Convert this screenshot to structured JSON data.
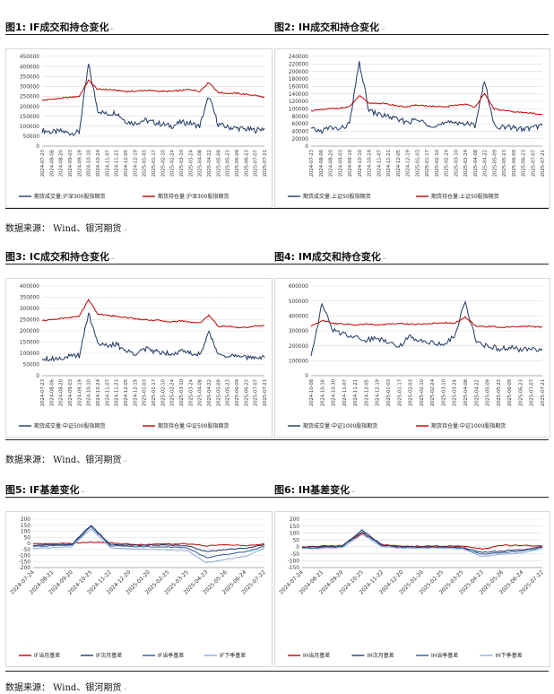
{
  "colors": {
    "navy": "#1f3864",
    "red": "#c00000",
    "lightblue": "#8eaadb",
    "grid": "#d9d9d9",
    "axis": "#999999"
  },
  "source_text": "数据来源：  Wind、银河期货",
  "figures": [
    {
      "title": "图1:  IF成交和持仓变化",
      "chart_data": {
        "type": "line",
        "y_ticks": [
          "0",
          "50000",
          "100000",
          "150000",
          "200000",
          "250000",
          "300000",
          "350000",
          "400000",
          "450000"
        ],
        "ylim": [
          0,
          450000
        ],
        "x_ticks": [
          "2024-07-23",
          "2024-08-06",
          "2024-08-20",
          "2024-09-03",
          "2024-09-19",
          "2024-10-10",
          "2024-10-24",
          "2024-11-07",
          "2024-11-21",
          "2024-12-05",
          "2024-12-19",
          "2025-01-03",
          "2025-01-17",
          "2025-02-10",
          "2025-02-24",
          "2025-03-10",
          "2025-03-24",
          "2025-04-08",
          "2025-04-22",
          "2025-05-09",
          "2025-05-23",
          "2025-06-09",
          "2025-06-23",
          "2025-07-07",
          "2025-07-21"
        ],
        "series": [
          {
            "name": "期货成交量:沪深300股指期货",
            "color": "#1f3864",
            "values": [
              80000,
              70000,
              75000,
              65000,
              70000,
              410000,
              180000,
              160000,
              170000,
              125000,
              115000,
              130000,
              120000,
              110000,
              100000,
              120000,
              115000,
              100000,
              250000,
              110000,
              95000,
              90000,
              85000,
              80000,
              90000
            ]
          },
          {
            "name": "期货持仓量:沪深300股指期货",
            "color": "#c00000",
            "values": [
              230000,
              235000,
              240000,
              245000,
              250000,
              330000,
              285000,
              285000,
              280000,
              275000,
              275000,
              280000,
              278000,
              275000,
              275000,
              280000,
              285000,
              275000,
              320000,
              270000,
              265000,
              265000,
              260000,
              255000,
              245000
            ]
          }
        ]
      }
    },
    {
      "title": "图2:  IH成交和持仓变化",
      "chart_data": {
        "type": "line",
        "y_ticks": [
          "0",
          "20000",
          "40000",
          "60000",
          "80000",
          "100000",
          "120000",
          "140000",
          "160000",
          "180000",
          "200000",
          "220000",
          "240000"
        ],
        "ylim": [
          0,
          240000
        ],
        "x_ticks": [
          "2024-07-23",
          "2024-08-06",
          "2024-08-20",
          "2024-09-03",
          "2024-09-19",
          "2024-10-10",
          "2024-10-24",
          "2024-11-07",
          "2024-11-21",
          "2024-12-05",
          "2024-12-19",
          "2025-01-03",
          "2025-01-17",
          "2025-02-10",
          "2025-02-24",
          "2025-03-10",
          "2025-03-24",
          "2025-04-08",
          "2025-04-22",
          "2025-05-09",
          "2025-05-23",
          "2025-06-09",
          "2025-06-23",
          "2025-07-07",
          "2025-07-21"
        ],
        "series": [
          {
            "name": "期货成交量:上证50股指期货",
            "color": "#1f3864",
            "values": [
              45000,
              40000,
              50000,
              45000,
              60000,
              225000,
              95000,
              85000,
              80000,
              70000,
              65000,
              70000,
              60000,
              55000,
              60000,
              65000,
              60000,
              55000,
              175000,
              55000,
              50000,
              50000,
              45000,
              50000,
              55000
            ]
          },
          {
            "name": "期货持仓量:上证50股指期货",
            "color": "#c00000",
            "values": [
              95000,
              97000,
              100000,
              102000,
              105000,
              135000,
              115000,
              115000,
              112000,
              108000,
              105000,
              110000,
              108000,
              105000,
              105000,
              110000,
              112000,
              105000,
              140000,
              100000,
              95000,
              92000,
              90000,
              88000,
              85000
            ]
          }
        ]
      }
    },
    {
      "title": "图3:  IC成交和持仓变化",
      "chart_data": {
        "type": "line",
        "y_ticks": [
          "0",
          "50000",
          "100000",
          "150000",
          "200000",
          "250000",
          "300000",
          "350000",
          "400000"
        ],
        "ylim": [
          0,
          400000
        ],
        "x_ticks": [
          "2024-07-23",
          "2024-08-06",
          "2024-08-20",
          "2024-09-03",
          "2024-09-19",
          "2024-10-10",
          "2024-10-24",
          "2024-11-07",
          "2024-11-21",
          "2024-12-05",
          "2024-12-19",
          "2025-01-03",
          "2025-01-17",
          "2025-02-10",
          "2025-02-24",
          "2025-03-10",
          "2025-03-24",
          "2025-04-08",
          "2025-04-22",
          "2025-05-09",
          "2025-05-23",
          "2025-06-09",
          "2025-06-23",
          "2025-07-07",
          "2025-07-21"
        ],
        "series": [
          {
            "name": "期货成交量:中证500股指期货",
            "color": "#1f3864",
            "values": [
              80000,
              75000,
              80000,
              85000,
              90000,
              280000,
              150000,
              130000,
              140000,
              110000,
              100000,
              120000,
              110000,
              105000,
              100000,
              110000,
              100000,
              95000,
              190000,
              100000,
              90000,
              85000,
              80000,
              85000,
              80000
            ]
          },
          {
            "name": "期货持仓量:中证500股指期货",
            "color": "#c00000",
            "values": [
              245000,
              250000,
              255000,
              260000,
              265000,
              340000,
              275000,
              270000,
              265000,
              260000,
              255000,
              250000,
              248000,
              245000,
              240000,
              245000,
              240000,
              235000,
              270000,
              220000,
              220000,
              215000,
              215000,
              220000,
              225000
            ]
          }
        ]
      }
    },
    {
      "title": "图4:  IM成交和持仓变化",
      "chart_data": {
        "type": "line",
        "y_ticks": [
          "0",
          "100000",
          "200000",
          "300000",
          "400000",
          "500000",
          "600000"
        ],
        "ylim": [
          0,
          600000
        ],
        "x_ticks": [
          "2024-10-08",
          "2024-10-16",
          "2024-10-30",
          "2024-11-07",
          "2024-11-21",
          "2024-12-05",
          "2024-12-19",
          "2025-01-03",
          "2025-01-17",
          "2025-02-03",
          "2025-02-10",
          "2025-02-24",
          "2025-03-10",
          "2025-03-24",
          "2025-04-08",
          "2025-04-22",
          "2025-05-09",
          "2025-05-23",
          "2025-06-09",
          "2025-06-23",
          "2025-07-07",
          "2025-07-21"
        ],
        "series": [
          {
            "name": "期货成交量:中证1000股指期货",
            "color": "#1f3864",
            "values": [
              140000,
              480000,
              300000,
              280000,
              260000,
              240000,
              250000,
              230000,
              200000,
              260000,
              240000,
              220000,
              210000,
              260000,
              500000,
              220000,
              200000,
              180000,
              190000,
              170000,
              180000,
              180000
            ]
          },
          {
            "name": "期货持仓量:中证1000股指期货",
            "color": "#c00000",
            "values": [
              330000,
              370000,
              350000,
              345000,
              340000,
              345000,
              340000,
              345000,
              350000,
              345000,
              345000,
              350000,
              355000,
              350000,
              390000,
              330000,
              330000,
              325000,
              325000,
              330000,
              330000,
              325000
            ]
          }
        ]
      }
    },
    {
      "title": "图5:  IF基差变化",
      "chart_data": {
        "type": "line",
        "y_ticks": [
          "-200",
          "-150",
          "-100",
          "-50",
          "0",
          "50",
          "100",
          "150",
          "200"
        ],
        "ylim": [
          -200,
          200
        ],
        "x_ticks": [
          "2024-07-24",
          "2024-08-21",
          "2024-09-20",
          "2024-10-25",
          "2024-11-22",
          "2024-12-20",
          "2025-01-20",
          "2025-02-25",
          "2025-03-25",
          "2025-04-23",
          "2025-05-26",
          "2025-06-24",
          "2025-07-22"
        ],
        "series": [
          {
            "name": "IF当月基差",
            "color": "#c00000",
            "values": [
              -5,
              -3,
              0,
              10,
              5,
              -8,
              -10,
              -5,
              -5,
              -20,
              -10,
              -20,
              -5
            ]
          },
          {
            "name": "IF次月基差",
            "color": "#1f3864",
            "values": [
              -15,
              -12,
              -8,
              150,
              -10,
              -15,
              -15,
              -15,
              -20,
              -70,
              -50,
              -40,
              -10
            ]
          },
          {
            "name": "IF当季基差",
            "color": "#2e5597",
            "values": [
              -25,
              -20,
              -15,
              140,
              -20,
              -25,
              -28,
              -30,
              -35,
              -120,
              -90,
              -70,
              -25
            ]
          },
          {
            "name": "IF下季基差",
            "color": "#8eaadb",
            "values": [
              -40,
              -35,
              -30,
              120,
              -35,
              -45,
              -50,
              -55,
              -60,
              -160,
              -130,
              -110,
              -40
            ]
          }
        ]
      }
    },
    {
      "title": "图6:  IH基差变化",
      "chart_data": {
        "type": "line",
        "y_ticks": [
          "-150",
          "-100",
          "-50",
          "0",
          "50",
          "100",
          "150",
          "200"
        ],
        "ylim": [
          -150,
          200
        ],
        "x_ticks": [
          "2024-07-24",
          "2024-08-21",
          "2024-09-20",
          "2024-10-25",
          "2024-11-22",
          "2024-12-20",
          "2025-01-20",
          "2025-02-25",
          "2025-03-25",
          "2025-04-23",
          "2025-05-26",
          "2025-06-24",
          "2025-07-22"
        ],
        "series": [
          {
            "name": "IH当月基差",
            "color": "#c00000",
            "values": [
              0,
              5,
              10,
              100,
              15,
              5,
              5,
              5,
              5,
              -15,
              10,
              10,
              5
            ]
          },
          {
            "name": "IH次月基差",
            "color": "#1f3864",
            "values": [
              -5,
              0,
              5,
              120,
              10,
              0,
              0,
              0,
              -5,
              -40,
              -30,
              -20,
              0
            ]
          },
          {
            "name": "IH当季基差",
            "color": "#2e5597",
            "values": [
              -10,
              -5,
              0,
              110,
              5,
              -5,
              -5,
              -5,
              -10,
              -55,
              -40,
              -30,
              -5
            ]
          },
          {
            "name": "IH下季基差",
            "color": "#8eaadb",
            "values": [
              -15,
              -10,
              -5,
              90,
              0,
              -10,
              -10,
              -10,
              -15,
              -70,
              -55,
              -45,
              -10
            ]
          }
        ]
      }
    }
  ]
}
